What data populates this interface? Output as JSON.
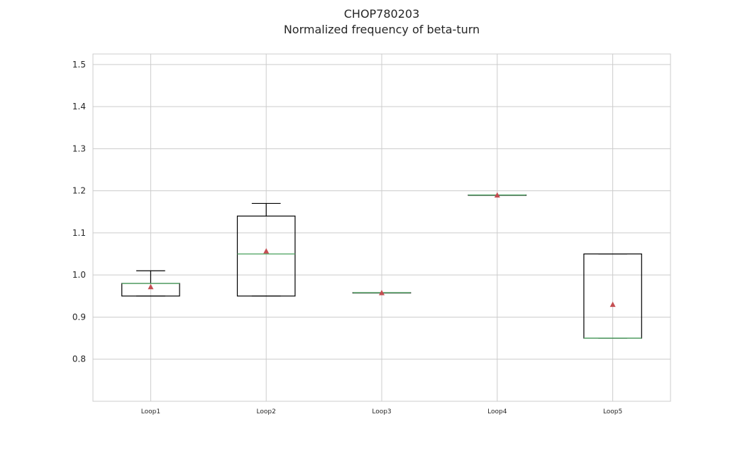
{
  "chart_data": {
    "type": "boxplot",
    "title": "CHOP780203",
    "subtitle": "Normalized frequency of beta-turn",
    "xlabel": "",
    "ylabel": "",
    "categories": [
      "Loop1",
      "Loop2",
      "Loop3",
      "Loop4",
      "Loop5"
    ],
    "ylim": [
      0.7,
      1.525
    ],
    "yticks": [
      0.8,
      0.9,
      1.0,
      1.1,
      1.2,
      1.3,
      1.4,
      1.5
    ],
    "ytick_labels": [
      "0.8",
      "0.9",
      "1.0",
      "1.1",
      "1.2",
      "1.3",
      "1.4",
      "1.5"
    ],
    "grid": true,
    "boxes": [
      {
        "whisker_low": 0.95,
        "q1": 0.95,
        "median": 0.98,
        "q3": 0.98,
        "whisker_high": 1.01,
        "mean": 0.972
      },
      {
        "whisker_low": 0.95,
        "q1": 0.95,
        "median": 1.05,
        "q3": 1.14,
        "whisker_high": 1.17,
        "mean": 1.057
      },
      {
        "whisker_low": 0.958,
        "q1": 0.958,
        "median": 0.958,
        "q3": 0.958,
        "whisker_high": 0.958,
        "mean": 0.958
      },
      {
        "whisker_low": 1.19,
        "q1": 1.19,
        "median": 1.19,
        "q3": 1.19,
        "whisker_high": 1.19,
        "mean": 1.19
      },
      {
        "whisker_low": 0.85,
        "q1": 0.85,
        "median": 0.85,
        "q3": 1.05,
        "whisker_high": 1.05,
        "mean": 0.93
      }
    ],
    "colors": {
      "box": "#000000",
      "median": "#55a868",
      "mean": "#c44e52",
      "grid": "#cccccc",
      "frame": "#cccccc"
    }
  }
}
